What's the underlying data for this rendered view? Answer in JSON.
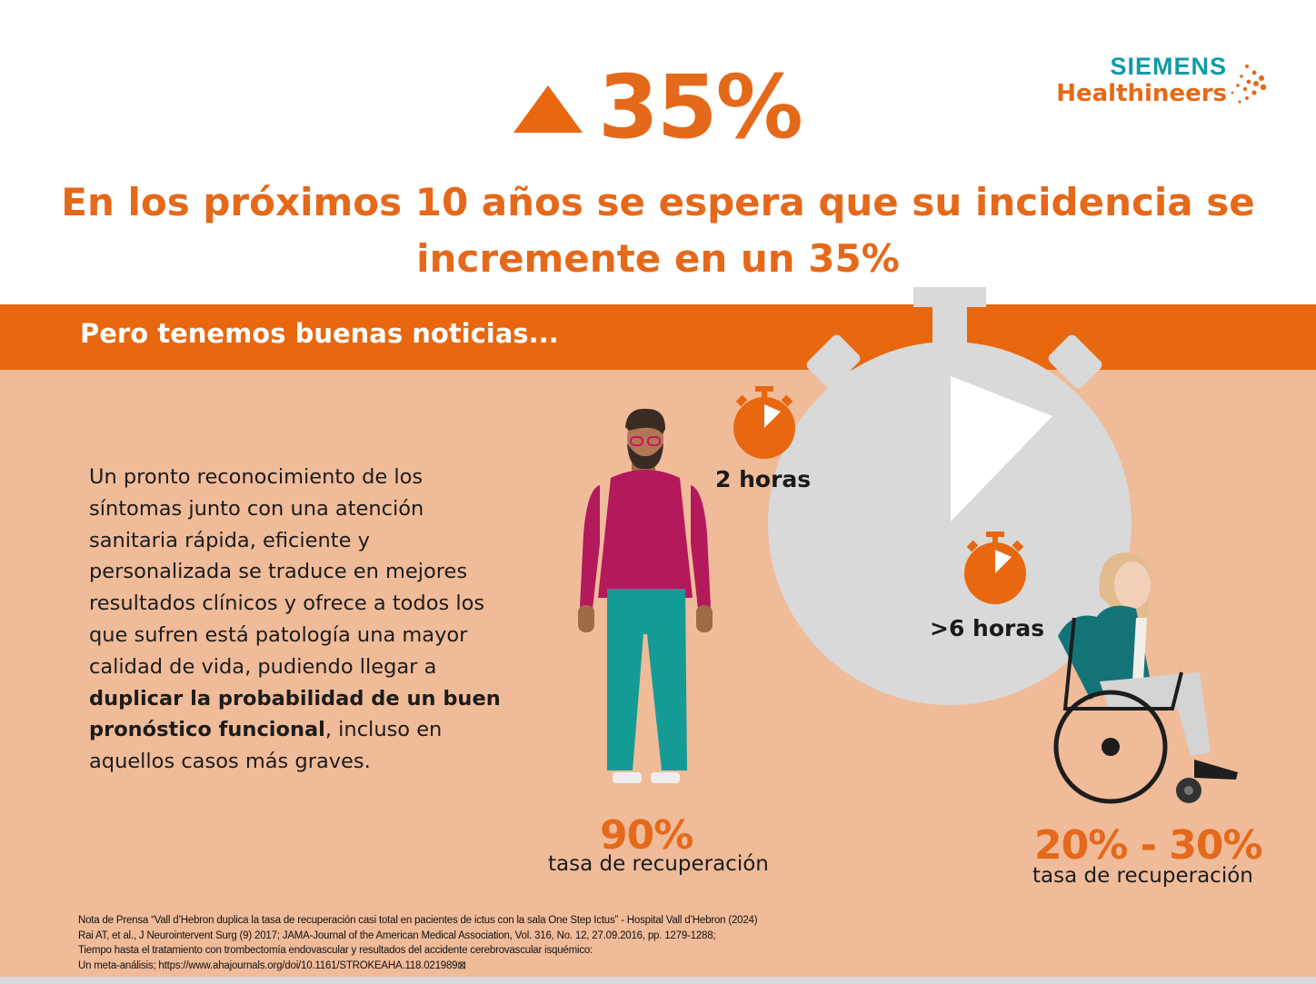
{
  "logo": {
    "line1": "SIEMENS",
    "line2": "Healthineers"
  },
  "header": {
    "big_percent": "35%",
    "headline": "En los próximos 10 años se espera que su incidencia se incremente en un 35%"
  },
  "band": {
    "text": "Pero tenemos buenas noticias..."
  },
  "body": {
    "part1": "Un pronto reconocimiento de los síntomas junto con una atención sanitaria rápida, eficiente y personalizada se traduce en mejores resultados clínicos y ofrece a todos los que sufren está patología una mayor calidad de vida, pudiendo llegar a ",
    "bold": "duplicar la probabilidad de un buen pronóstico funcional",
    "part2": ", incluso en aquellos casos más graves."
  },
  "times": {
    "fast": "2 horas",
    "slow": ">6 horas"
  },
  "outcomes": {
    "fast_pct": "90%",
    "fast_label": "tasa de recuperación",
    "slow_pct": "20% - 30%",
    "slow_label": "tasa de recuperación"
  },
  "footnotes": [
    "Nota de Prensa “Vall d’Hebron duplica la tasa de recuperación casi total en pacientes de ictus con la sala One Step Ictus” - Hospital Vall d’Hebron (2024)",
    "Rai AT, et al., J Neurointervent Surg (9) 2017; JAMA-Journal of the American Medical Association, Vol. 316, No. 12, 27.09.2016, pp. 1279-1288;",
    "Tiempo hasta el tratamiento con trombectomía endovascular y resultados del accidente cerebrovascular isquémico:",
    "Un meta-análisis; https://www.ahajournals.org/doi/10.1161/STROKEAHA.118.021989⊠"
  ],
  "colors": {
    "orange": "#e8670f",
    "teal": "#0f9ba6",
    "panel": "#f0bb99",
    "grey": "#d9d9d9"
  }
}
